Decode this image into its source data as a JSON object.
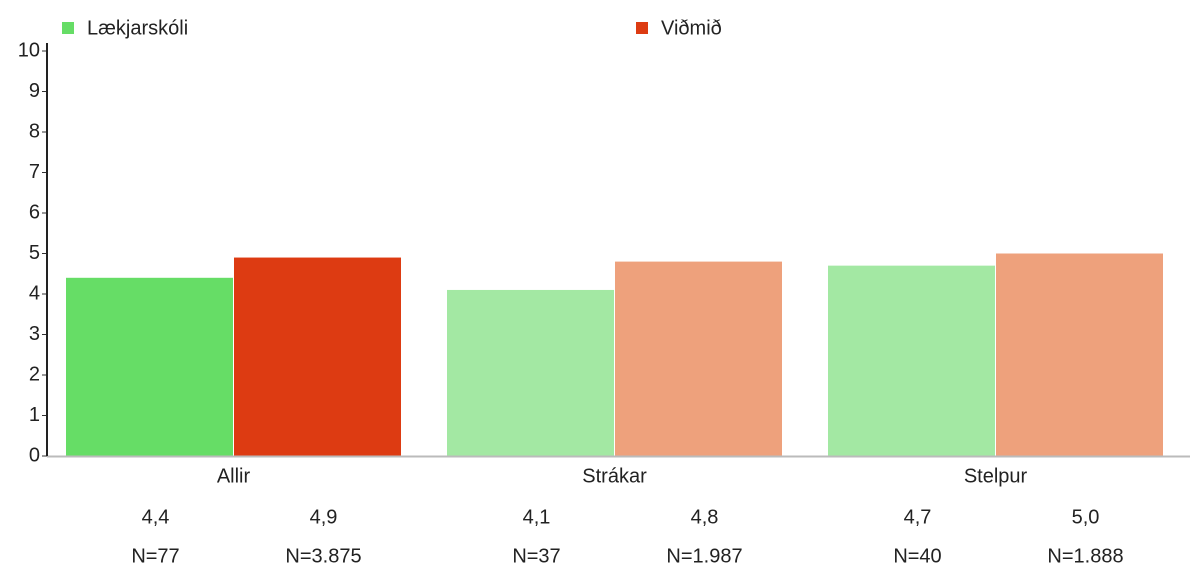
{
  "chart_data": {
    "type": "bar",
    "categories": [
      "Allir",
      "Strákar",
      "Stelpur"
    ],
    "series": [
      {
        "name": "Lækjarskóli",
        "color": "#66dd66",
        "colors": [
          "#66dd66",
          "#a3e8a3",
          "#a3e8a3"
        ],
        "values": [
          4.4,
          4.1,
          4.7
        ],
        "value_labels": [
          "4,4",
          "4,1",
          "4,7"
        ],
        "n_labels": [
          "N=77",
          "N=37",
          "N=40"
        ]
      },
      {
        "name": "Viðmið",
        "color": "#dd3b12",
        "colors": [
          "#dd3b12",
          "#eea17c",
          "#eea17c"
        ],
        "values": [
          4.9,
          4.8,
          5.0
        ],
        "value_labels": [
          "4,9",
          "4,8",
          "5,0"
        ],
        "n_labels": [
          "N=3.875",
          "N=1.987",
          "N=1.888"
        ]
      }
    ],
    "ylim": [
      0,
      10
    ],
    "yticks": [
      0,
      1,
      2,
      3,
      4,
      5,
      6,
      7,
      8,
      9,
      10
    ],
    "legend": "top"
  }
}
